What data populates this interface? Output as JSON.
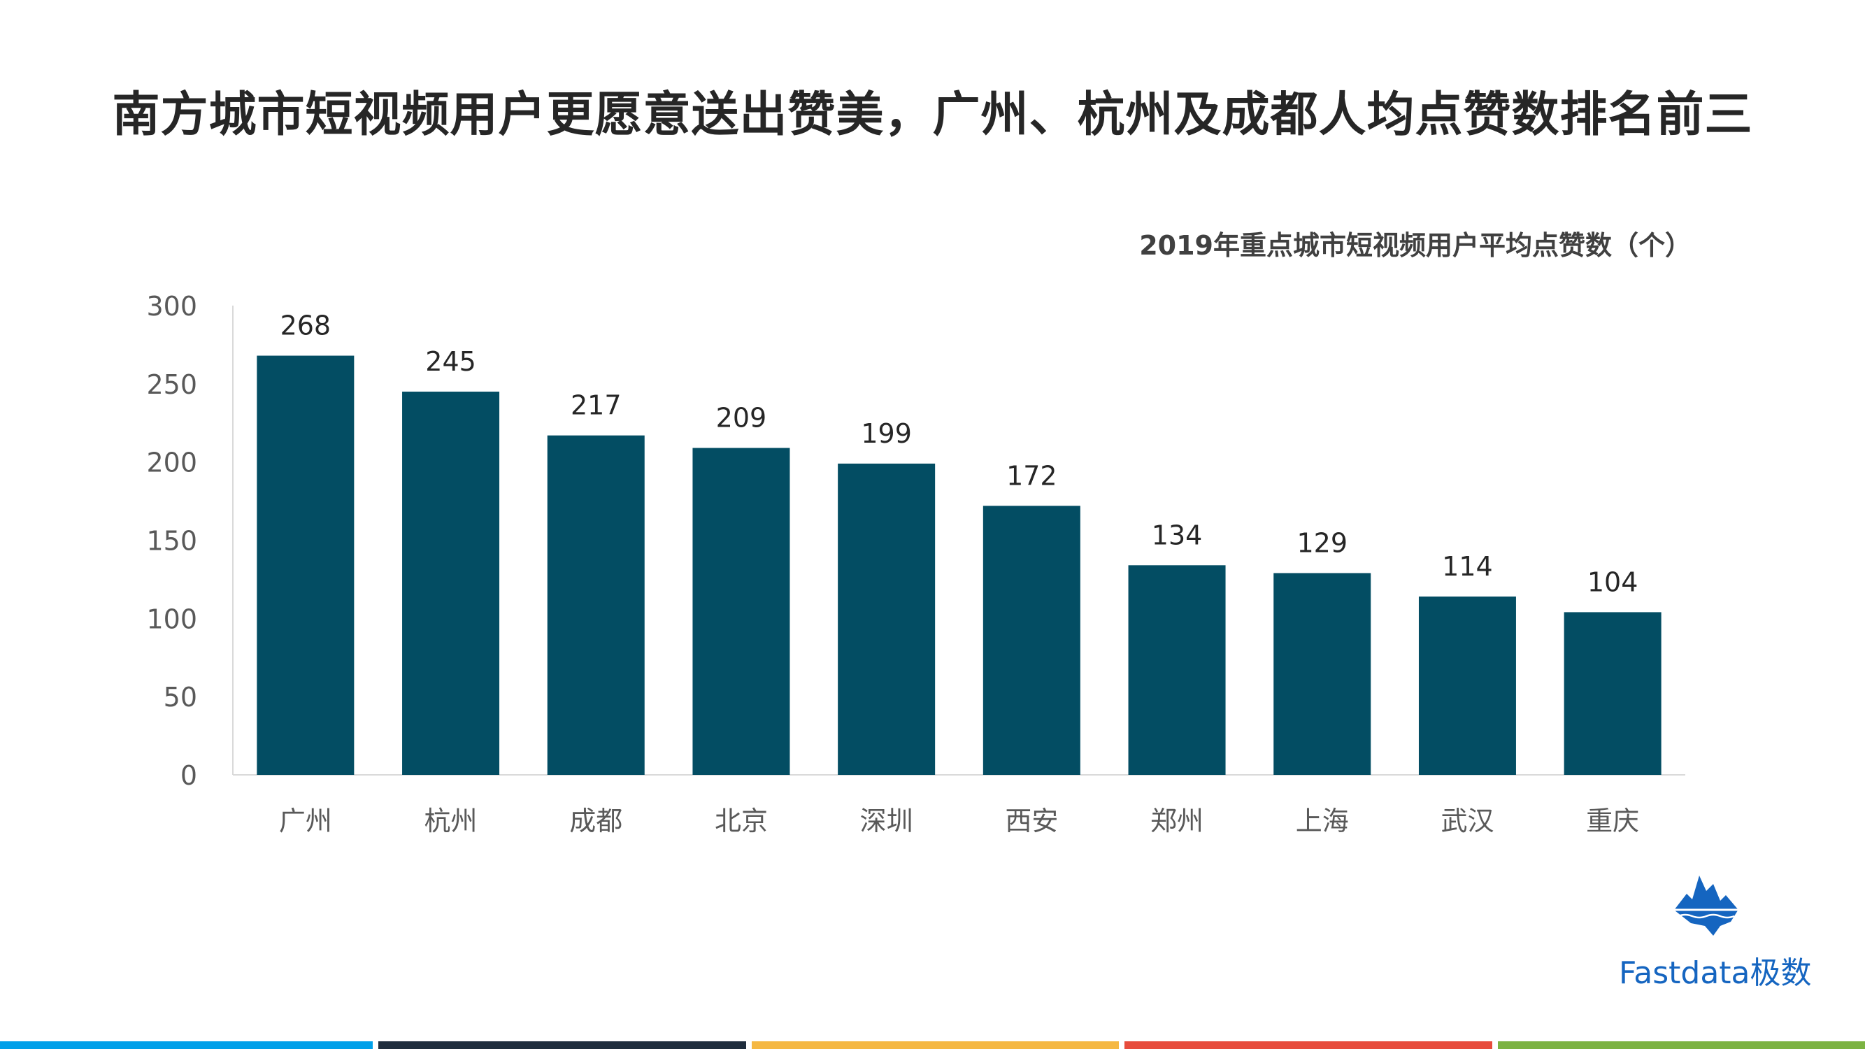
{
  "page": {
    "title": "南方城市短视频用户更愿意送出赞美，广州、杭州及成都人均点赞数排名前三"
  },
  "chart_data": {
    "type": "bar",
    "title": "2019年重点城市短视频用户平均点赞数（个）",
    "categories": [
      "广州",
      "杭州",
      "成都",
      "北京",
      "深圳",
      "西安",
      "郑州",
      "上海",
      "武汉",
      "重庆"
    ],
    "values": [
      268,
      245,
      217,
      209,
      199,
      172,
      134,
      129,
      114,
      104
    ],
    "xlabel": "",
    "ylabel": "",
    "ylim": [
      0,
      300
    ],
    "yticks": [
      0,
      50,
      100,
      150,
      200,
      250,
      300
    ],
    "grid": false,
    "data_labels": true,
    "bar_color": "#034d63"
  },
  "branding": {
    "logo_text": "Fastdata极数",
    "logo_color": "#1565c0",
    "stripe_colors": [
      "#00a0e9",
      "#1f2d3d",
      "#f5b843",
      "#e74c3c",
      "#7cb342"
    ]
  }
}
